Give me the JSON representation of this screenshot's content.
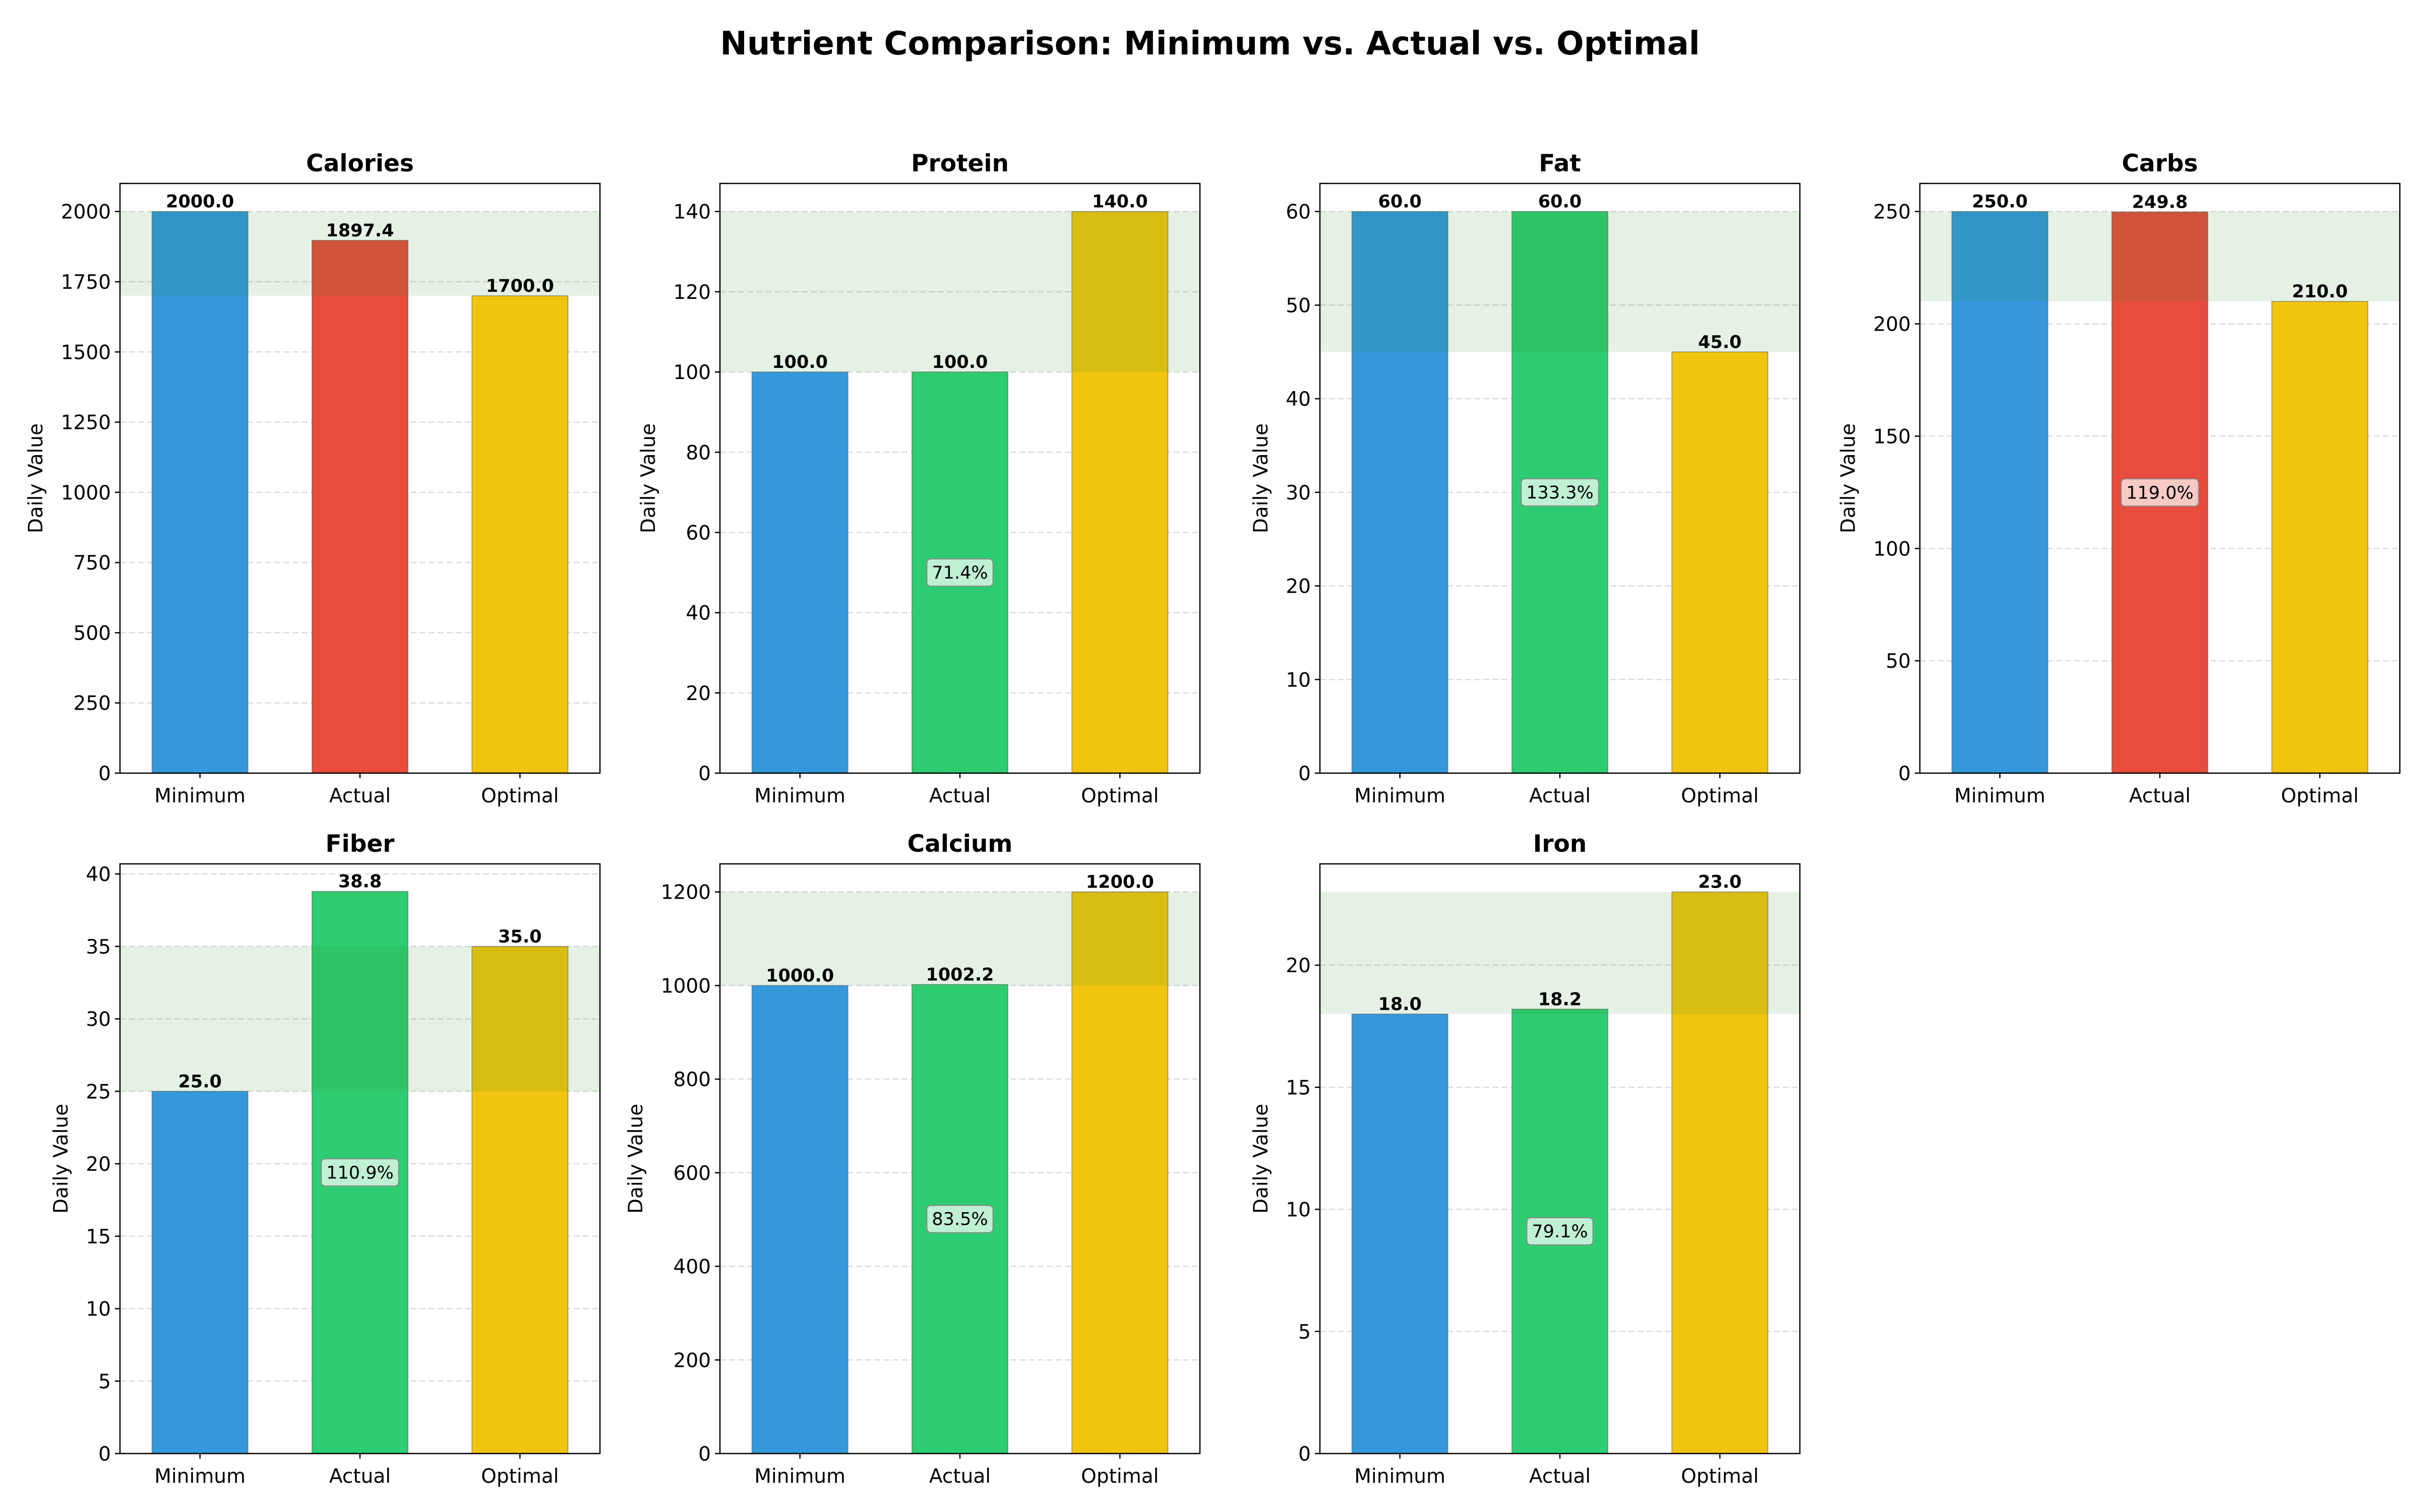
{
  "figure": {
    "title": "Nutrient Comparison: Minimum vs. Actual vs. Optimal"
  },
  "chart_data": [
    {
      "type": "bar",
      "title": "Calories",
      "ylabel": "Daily Value",
      "categories": [
        "Minimum",
        "Actual",
        "Optimal"
      ],
      "values": [
        2000.0,
        1897.4,
        1700.0
      ],
      "value_labels": [
        "2000.0",
        "1897.4",
        "1700.0"
      ],
      "percent_label": "",
      "bar_colors": [
        "#3498db",
        "#e74c3c",
        "#f1c40f"
      ],
      "optimal_band": [
        1700,
        2000
      ],
      "ylim": [
        0,
        2100
      ],
      "yticks": [
        0,
        250,
        500,
        750,
        1000,
        1250,
        1500,
        1750,
        2000
      ],
      "ytick_labels": [
        "0",
        "250",
        "500",
        "750",
        "1000",
        "1250",
        "1500",
        "1750",
        "2000"
      ],
      "grid": "y-dashed"
    },
    {
      "type": "bar",
      "title": "Protein",
      "ylabel": "Daily Value",
      "categories": [
        "Minimum",
        "Actual",
        "Optimal"
      ],
      "values": [
        100.0,
        100.0,
        140.0
      ],
      "value_labels": [
        "100.0",
        "100.0",
        "140.0"
      ],
      "percent_label": "71.4%",
      "bar_colors": [
        "#3498db",
        "#2ecc71",
        "#f1c40f"
      ],
      "optimal_band": [
        100,
        140
      ],
      "ylim": [
        0,
        147
      ],
      "yticks": [
        0,
        20,
        40,
        60,
        80,
        100,
        120,
        140
      ],
      "ytick_labels": [
        "0",
        "20",
        "40",
        "60",
        "80",
        "100",
        "120",
        "140"
      ],
      "grid": "y-dashed"
    },
    {
      "type": "bar",
      "title": "Fat",
      "ylabel": "Daily Value",
      "categories": [
        "Minimum",
        "Actual",
        "Optimal"
      ],
      "values": [
        60.0,
        60.0,
        45.0
      ],
      "value_labels": [
        "60.0",
        "60.0",
        "45.0"
      ],
      "percent_label": "133.3%",
      "bar_colors": [
        "#3498db",
        "#2ecc71",
        "#f1c40f"
      ],
      "optimal_band": [
        45,
        60
      ],
      "ylim": [
        0,
        63
      ],
      "yticks": [
        0,
        10,
        20,
        30,
        40,
        50,
        60
      ],
      "ytick_labels": [
        "0",
        "10",
        "20",
        "30",
        "40",
        "50",
        "60"
      ],
      "grid": "y-dashed"
    },
    {
      "type": "bar",
      "title": "Carbs",
      "ylabel": "Daily Value",
      "categories": [
        "Minimum",
        "Actual",
        "Optimal"
      ],
      "values": [
        250.0,
        249.8,
        210.0
      ],
      "value_labels": [
        "250.0",
        "249.8",
        "210.0"
      ],
      "percent_label": "119.0%",
      "bar_colors": [
        "#3498db",
        "#e74c3c",
        "#f1c40f"
      ],
      "optimal_band": [
        210,
        250
      ],
      "ylim": [
        0,
        262.5
      ],
      "yticks": [
        0,
        50,
        100,
        150,
        200,
        250
      ],
      "ytick_labels": [
        "0",
        "50",
        "100",
        "150",
        "200",
        "250"
      ],
      "grid": "y-dashed"
    },
    {
      "type": "bar",
      "title": "Fiber",
      "ylabel": "Daily Value",
      "categories": [
        "Minimum",
        "Actual",
        "Optimal"
      ],
      "values": [
        25.0,
        38.8,
        35.0
      ],
      "value_labels": [
        "25.0",
        "38.8",
        "35.0"
      ],
      "percent_label": "110.9%",
      "bar_colors": [
        "#3498db",
        "#2ecc71",
        "#f1c40f"
      ],
      "optimal_band": [
        25,
        35
      ],
      "ylim": [
        0,
        40.7
      ],
      "yticks": [
        0,
        5,
        10,
        15,
        20,
        25,
        30,
        35,
        40
      ],
      "ytick_labels": [
        "0",
        "5",
        "10",
        "15",
        "20",
        "25",
        "30",
        "35",
        "40"
      ],
      "grid": "y-dashed"
    },
    {
      "type": "bar",
      "title": "Calcium",
      "ylabel": "Daily Value",
      "categories": [
        "Minimum",
        "Actual",
        "Optimal"
      ],
      "values": [
        1000.0,
        1002.2,
        1200.0
      ],
      "value_labels": [
        "1000.0",
        "1002.2",
        "1200.0"
      ],
      "percent_label": "83.5%",
      "bar_colors": [
        "#3498db",
        "#2ecc71",
        "#f1c40f"
      ],
      "optimal_band": [
        1000,
        1200
      ],
      "ylim": [
        0,
        1260
      ],
      "yticks": [
        0,
        200,
        400,
        600,
        800,
        1000,
        1200
      ],
      "ytick_labels": [
        "0",
        "200",
        "400",
        "600",
        "800",
        "1000",
        "1200"
      ],
      "grid": "y-dashed"
    },
    {
      "type": "bar",
      "title": "Iron",
      "ylabel": "Daily Value",
      "categories": [
        "Minimum",
        "Actual",
        "Optimal"
      ],
      "values": [
        18.0,
        18.2,
        23.0
      ],
      "value_labels": [
        "18.0",
        "18.2",
        "23.0"
      ],
      "percent_label": "79.1%",
      "bar_colors": [
        "#3498db",
        "#2ecc71",
        "#f1c40f"
      ],
      "optimal_band": [
        18,
        23
      ],
      "ylim": [
        0,
        24.15
      ],
      "yticks": [
        0,
        5,
        10,
        15,
        20
      ],
      "ytick_labels": [
        "0",
        "5",
        "10",
        "15",
        "20"
      ],
      "grid": "y-dashed"
    }
  ]
}
